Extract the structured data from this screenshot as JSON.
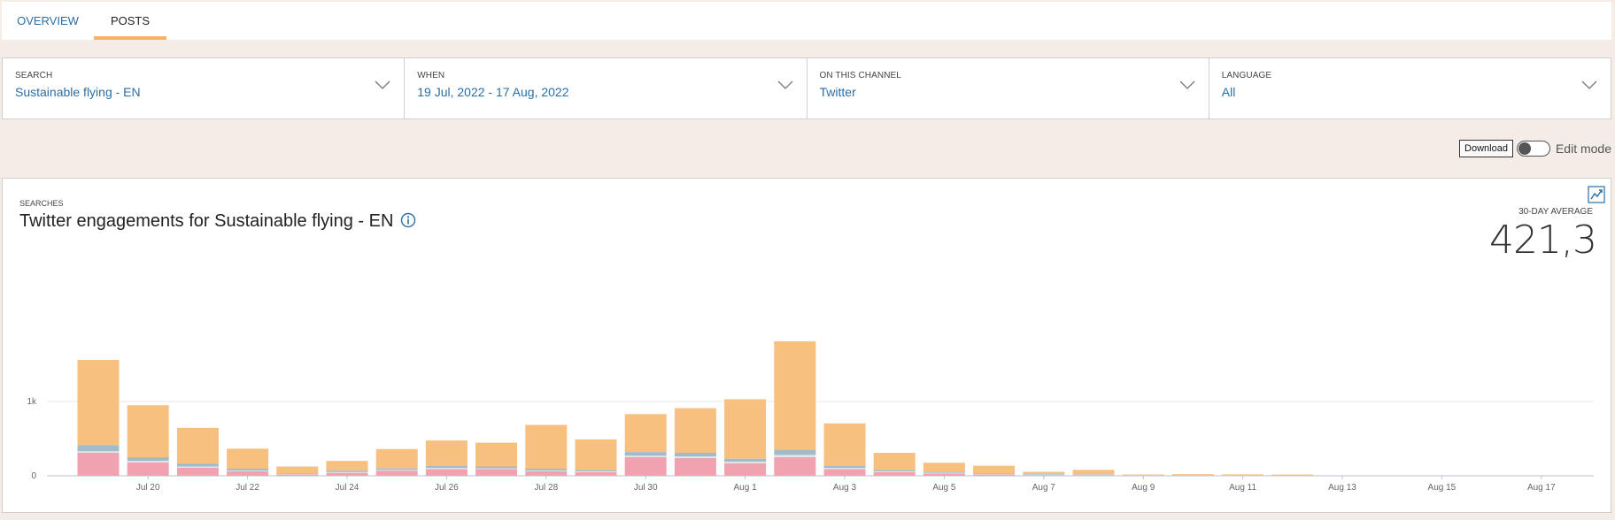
{
  "tabs": [
    {
      "label": "OVERVIEW"
    },
    {
      "label": "POSTS"
    }
  ],
  "filters": {
    "search": {
      "label": "SEARCH",
      "value": "Sustainable flying - EN"
    },
    "when": {
      "label": "WHEN",
      "value": "19 Jul, 2022 - 17 Aug, 2022"
    },
    "channel": {
      "label": "ON THIS CHANNEL",
      "value": "Twitter"
    },
    "language": {
      "label": "LANGUAGE",
      "value": "All"
    }
  },
  "toolbar": {
    "download_label": "Download",
    "edit_mode_label": "Edit mode",
    "edit_mode_on": false
  },
  "card": {
    "kicker": "SEARCHES",
    "title": "Twitter engagements for Sustainable flying - EN",
    "avg_label": "30-DAY AVERAGE",
    "avg_value": "421,3"
  },
  "icons": {
    "info": "info-icon",
    "trend": "trend-chart-icon",
    "chevron": "chevron-down-icon"
  },
  "colors": {
    "accent": "#2b6ea6",
    "tab_underline": "#f6b26b",
    "series_orange": "#f8c07e",
    "series_blue": "#9fbccd",
    "series_light": "#e6e6e6",
    "series_pink": "#f1a2b0"
  },
  "chart_data": {
    "type": "bar",
    "stacked": true,
    "x": [
      "Jul 19",
      "Jul 20",
      "Jul 21",
      "Jul 22",
      "Jul 23",
      "Jul 24",
      "Jul 25",
      "Jul 26",
      "Jul 27",
      "Jul 28",
      "Jul 29",
      "Jul 30",
      "Jul 31",
      "Aug 1",
      "Aug 2",
      "Aug 3",
      "Aug 4",
      "Aug 5",
      "Aug 6",
      "Aug 7",
      "Aug 8",
      "Aug 9",
      "Aug 10",
      "Aug 11",
      "Aug 12",
      "Aug 13",
      "Aug 14",
      "Aug 15",
      "Aug 16",
      "Aug 17"
    ],
    "tick_labels": [
      "Jul 20",
      "Jul 22",
      "Jul 24",
      "Jul 26",
      "Jul 28",
      "Jul 30",
      "Aug 1",
      "Aug 3",
      "Aug 5",
      "Aug 7",
      "Aug 9",
      "Aug 11",
      "Aug 13",
      "Aug 15",
      "Aug 17"
    ],
    "y_tick_labels": [
      "0",
      "1k"
    ],
    "y_ticks": [
      0,
      1000
    ],
    "ylim": [
      0,
      2000
    ],
    "grid": true,
    "series": [
      {
        "values": [
          310,
          180,
          110,
          60,
          20,
          40,
          70,
          90,
          90,
          60,
          50,
          250,
          240,
          170,
          250,
          90,
          50,
          30,
          20,
          10,
          10,
          5,
          5,
          3,
          2,
          0,
          0,
          0,
          0,
          0
        ]
      },
      {
        "values": [
          20,
          20,
          15,
          10,
          5,
          10,
          10,
          15,
          10,
          10,
          10,
          20,
          20,
          20,
          30,
          15,
          10,
          10,
          5,
          5,
          5,
          3,
          3,
          2,
          2,
          0,
          0,
          0,
          0,
          0
        ]
      },
      {
        "values": [
          80,
          50,
          40,
          25,
          10,
          20,
          20,
          30,
          25,
          25,
          20,
          50,
          50,
          40,
          70,
          30,
          20,
          15,
          10,
          8,
          5,
          5,
          5,
          5,
          3,
          0,
          0,
          0,
          0,
          0
        ]
      },
      {
        "values": [
          1150,
          700,
          480,
          270,
          90,
          130,
          260,
          340,
          320,
          590,
          410,
          510,
          600,
          800,
          1460,
          570,
          230,
          120,
          100,
          30,
          60,
          5,
          10,
          10,
          10,
          0,
          0,
          0,
          0,
          0
        ]
      }
    ]
  }
}
